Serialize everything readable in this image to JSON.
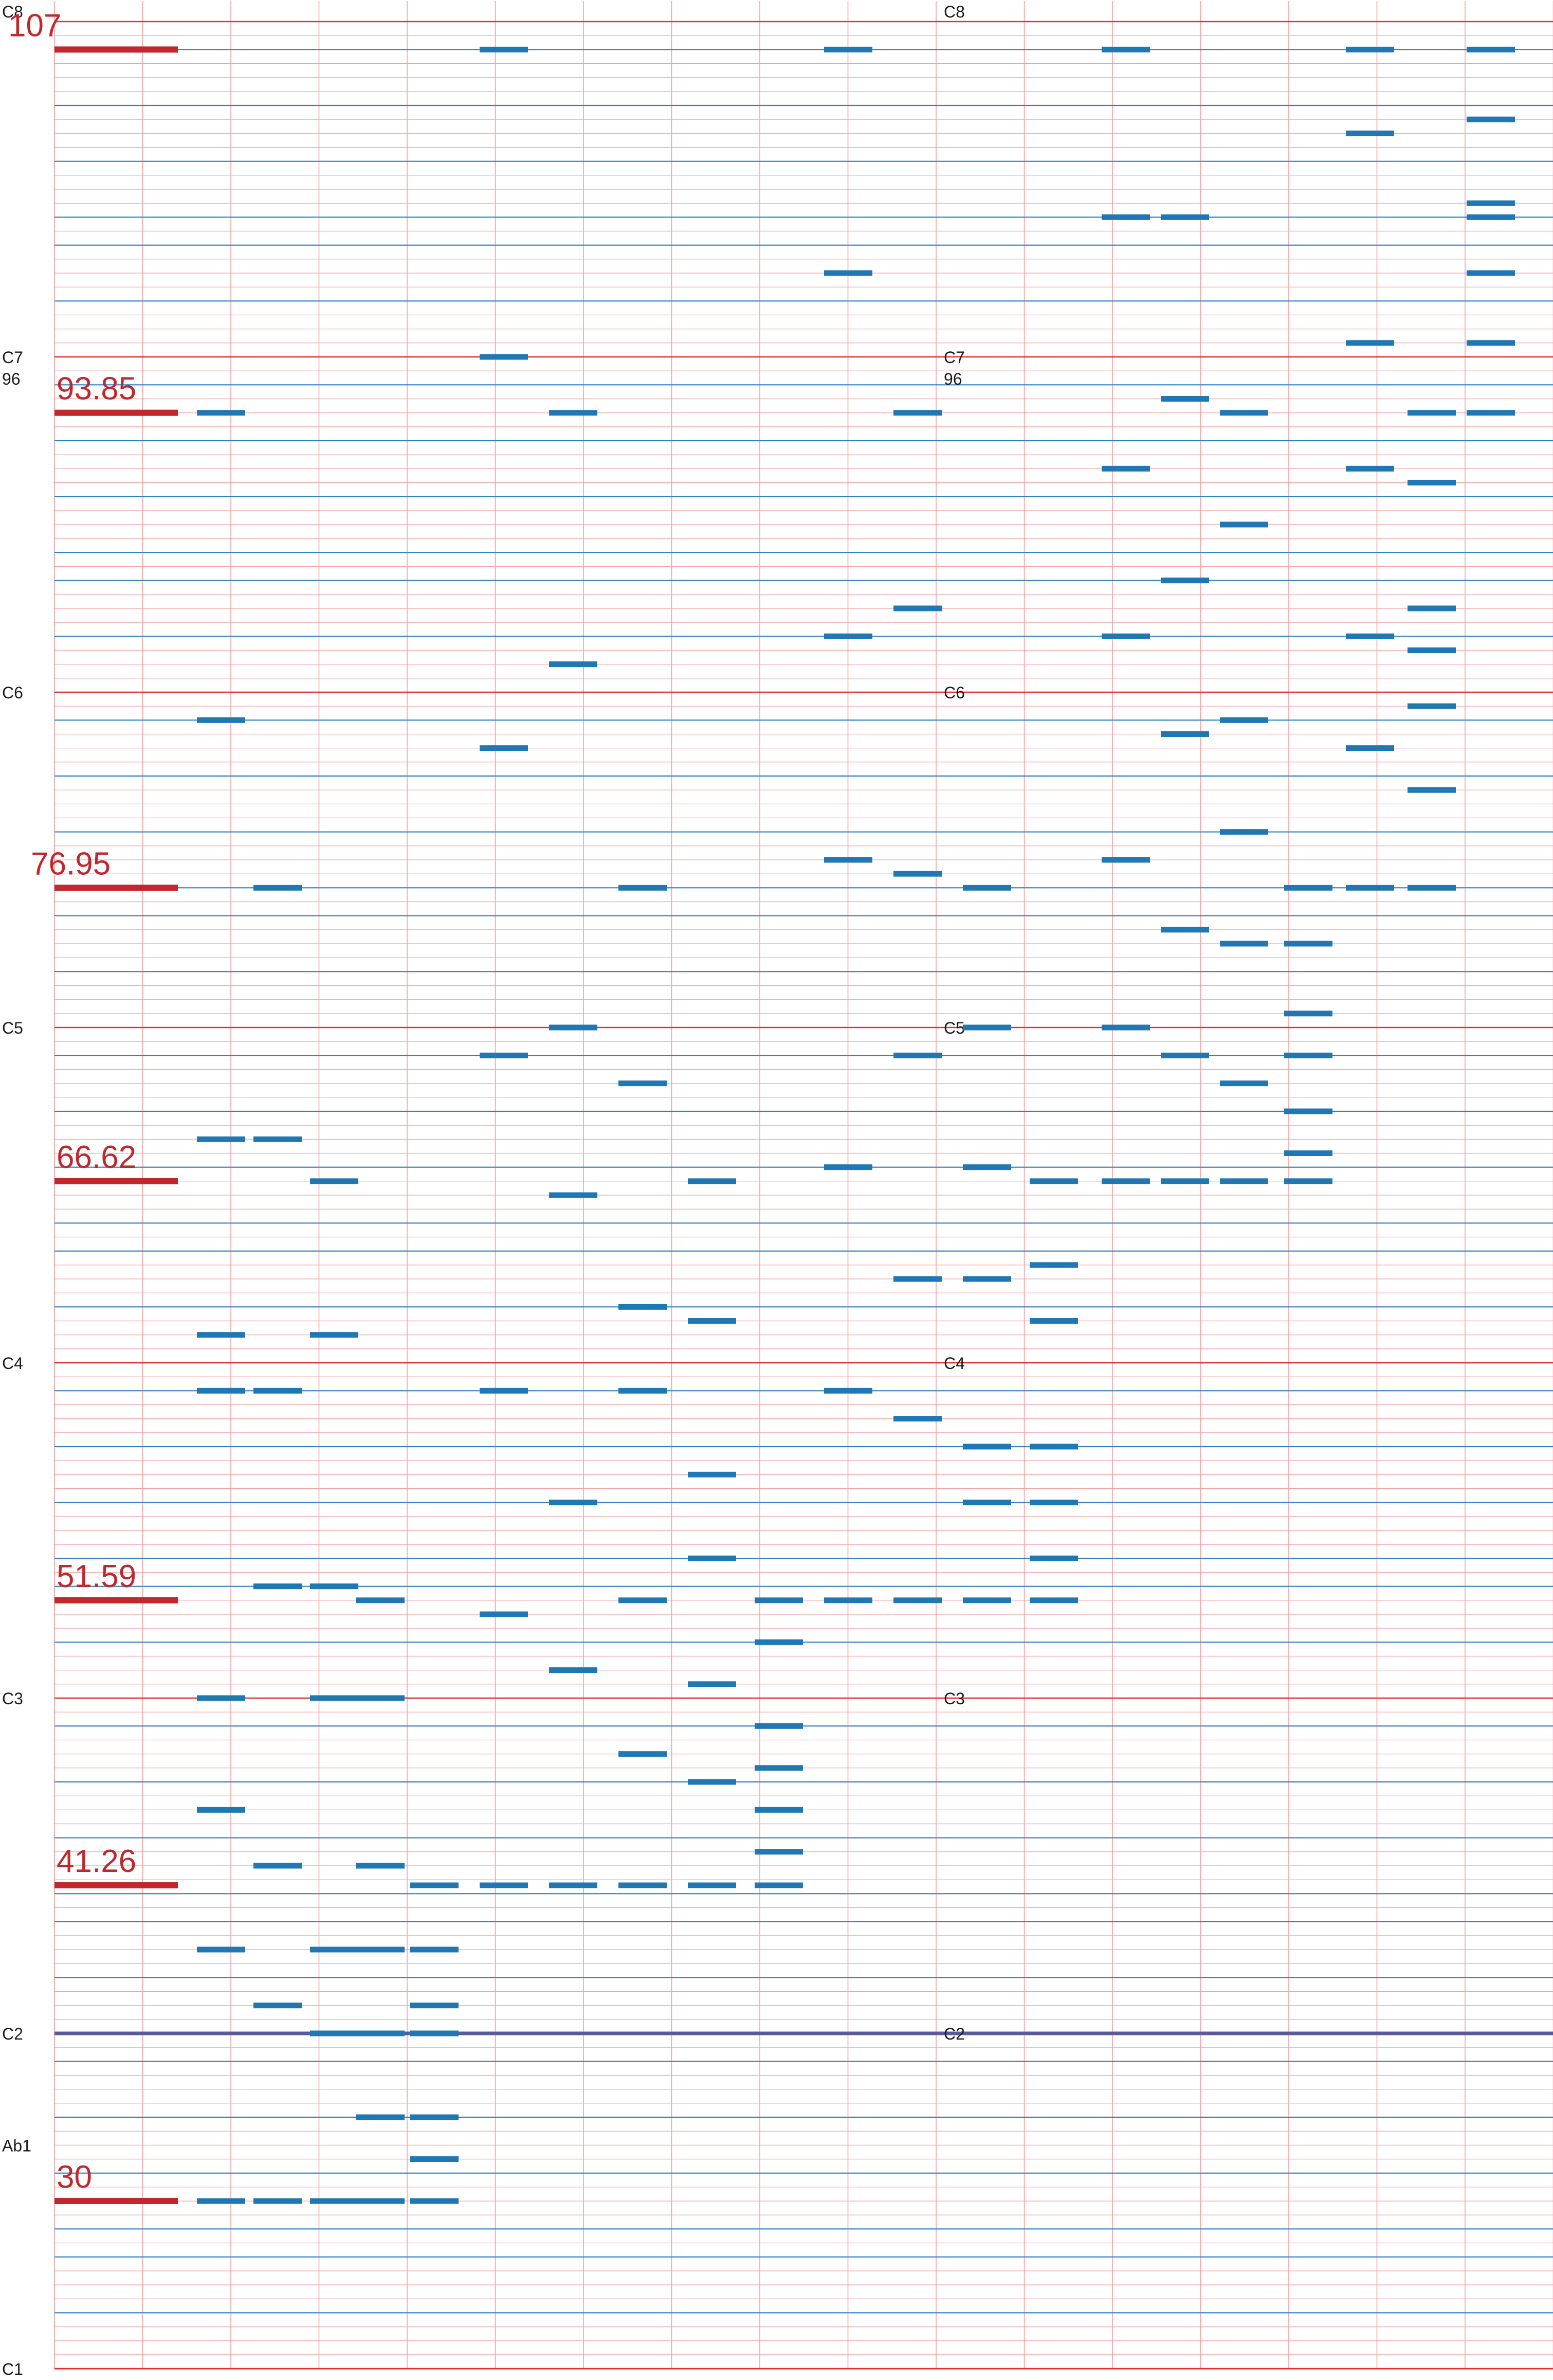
{
  "chart_data": {
    "type": "scatter",
    "title": "",
    "xlabel": "",
    "ylabel": "",
    "x_columns": 17,
    "ylim": [
      24,
      108
    ],
    "y_unit": "MIDI note number",
    "grid": true,
    "colors": {
      "semitone_grid": "#f4a0a0",
      "column_grid": "#f4a0a0",
      "natural_note_line": "#2f7fc1",
      "octave_c_line": "#e03030",
      "c2_line": "#5a5a9a",
      "marker": "#c0282e",
      "note": "#1f78b4"
    },
    "octave_labels": [
      {
        "label": "C8",
        "midi": 108
      },
      {
        "label": "C7",
        "midi": 96
      },
      {
        "label": "C6",
        "midi": 84
      },
      {
        "label": "C5",
        "midi": 72
      },
      {
        "label": "C4",
        "midi": 60
      },
      {
        "label": "C3",
        "midi": 48
      },
      {
        "label": "C2",
        "midi": 36
      },
      {
        "label": "C1",
        "midi": 24
      }
    ],
    "right_octave_labels": [
      {
        "label": "C8",
        "midi": 108
      },
      {
        "label": "C7",
        "midi": 96
      },
      {
        "label": "C6",
        "midi": 84
      },
      {
        "label": "C5",
        "midi": 72
      },
      {
        "label": "C4",
        "midi": 60
      },
      {
        "label": "C3",
        "midi": 48
      },
      {
        "label": "C2",
        "midi": 36
      }
    ],
    "extra_labels": [
      {
        "label": "96",
        "midi": 96,
        "side": "left"
      },
      {
        "label": "96",
        "midi": 96,
        "side": "right"
      },
      {
        "label": "Ab1",
        "midi": 32,
        "side": "left"
      }
    ],
    "markers": [
      {
        "label": "107",
        "y": 107
      },
      {
        "label": "93.85",
        "y": 94
      },
      {
        "label": "76.95",
        "y": 77
      },
      {
        "label": "66.62",
        "y": 66.5
      },
      {
        "label": "51.59",
        "y": 51.5
      },
      {
        "label": "41.26",
        "y": 41.3
      },
      {
        "label": "30",
        "y": 30
      }
    ],
    "series": [
      {
        "column": 1,
        "values": [
          94,
          83,
          68,
          61,
          59,
          48,
          44,
          39,
          30
        ]
      },
      {
        "column": 2,
        "values": [
          77,
          68,
          59,
          52,
          42,
          37,
          30
        ]
      },
      {
        "column": 3,
        "values": [
          66.5,
          61,
          52,
          48,
          39,
          36,
          30
        ]
      },
      {
        "column": 4,
        "values": [
          51.5,
          48,
          42,
          39,
          36,
          33,
          30
        ]
      },
      {
        "column": 5,
        "values": [
          41.3,
          39,
          37,
          36,
          33,
          31.5,
          30
        ]
      },
      {
        "column": 6,
        "values": [
          107,
          96,
          82,
          71,
          59,
          51,
          41.3
        ]
      },
      {
        "column": 7,
        "values": [
          94,
          85,
          72,
          66,
          55,
          49,
          41.3
        ]
      },
      {
        "column": 8,
        "values": [
          77,
          70,
          62,
          59,
          51.5,
          46,
          41.3
        ]
      },
      {
        "column": 9,
        "values": [
          66.5,
          61.5,
          56,
          53,
          48.5,
          45,
          41.3
        ]
      },
      {
        "column": 10,
        "values": [
          51.5,
          50,
          47,
          45.5,
          44,
          42.5,
          41.3
        ]
      },
      {
        "column": 11,
        "values": [
          107,
          99,
          86,
          78,
          67,
          59,
          51.5
        ]
      },
      {
        "column": 12,
        "values": [
          94,
          87,
          77.5,
          71,
          63,
          58,
          51.5
        ]
      },
      {
        "column": 13,
        "values": [
          77,
          72,
          67,
          63,
          57,
          55,
          51.5
        ]
      },
      {
        "column": 14,
        "values": [
          66.5,
          63.5,
          61.5,
          57,
          55,
          53,
          51.5
        ]
      },
      {
        "column": 15,
        "values": [
          107,
          101,
          92,
          86,
          78,
          72,
          66.5
        ]
      },
      {
        "column": 16,
        "values": [
          101,
          94.5,
          88,
          82.5,
          75.5,
          71,
          66.5
        ]
      },
      {
        "column": 17,
        "values": [
          94,
          90,
          83,
          79,
          75,
          70,
          66.5
        ]
      },
      {
        "column": 18,
        "values": [
          77,
          75,
          72.5,
          71,
          69,
          67.5,
          66.5
        ]
      },
      {
        "column": 19,
        "values": [
          107,
          96.5,
          92,
          86,
          82,
          77,
          104
        ]
      },
      {
        "column": 20,
        "values": [
          94,
          91.5,
          87,
          85.5,
          83.5,
          80.5,
          77
        ]
      },
      {
        "column": 21,
        "values": [
          107,
          104.5,
          101.5,
          99,
          96.5,
          94,
          101
        ]
      }
    ]
  }
}
